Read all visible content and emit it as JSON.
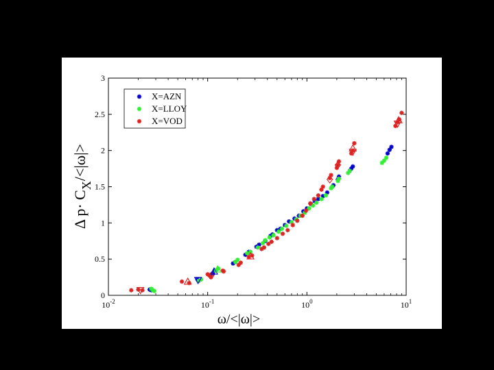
{
  "chart_data": {
    "type": "scatter",
    "x_scale": "log",
    "xlim": [
      0.01,
      10
    ],
    "ylim": [
      0,
      3
    ],
    "xlabel": "ω/<|ω|>",
    "ylabel_parts": {
      "main": "Δ p· C",
      "sub": "X",
      "tail": "/<|ω|>"
    },
    "x_ticks": [
      {
        "value": 0.01,
        "base": "10",
        "exp": "-2"
      },
      {
        "value": 0.1,
        "base": "10",
        "exp": "-1"
      },
      {
        "value": 1,
        "base": "10",
        "exp": "0"
      },
      {
        "value": 10,
        "base": "10",
        "exp": "1"
      }
    ],
    "y_ticks": [
      {
        "value": 0,
        "label": "0"
      },
      {
        "value": 0.5,
        "label": "0.5"
      },
      {
        "value": 1,
        "label": "1"
      },
      {
        "value": 1.5,
        "label": "1.5"
      },
      {
        "value": 2,
        "label": "2"
      },
      {
        "value": 2.5,
        "label": "2.5"
      },
      {
        "value": 3,
        "label": "3"
      }
    ],
    "legend_position": "top-left",
    "series": [
      {
        "name": "X=AZN",
        "color": "#0000cc",
        "points": [
          [
            0.026,
            0.08
          ],
          [
            0.027,
            0.07
          ],
          [
            0.079,
            0.22
          ],
          [
            0.081,
            0.2
          ],
          [
            0.113,
            0.3
          ],
          [
            0.118,
            0.34
          ],
          [
            0.18,
            0.44
          ],
          [
            0.19,
            0.46
          ],
          [
            0.24,
            0.56
          ],
          [
            0.26,
            0.6
          ],
          [
            0.31,
            0.67
          ],
          [
            0.33,
            0.7
          ],
          [
            0.38,
            0.75
          ],
          [
            0.43,
            0.82
          ],
          [
            0.45,
            0.84
          ],
          [
            0.5,
            0.9
          ],
          [
            0.54,
            0.92
          ],
          [
            0.6,
            0.97
          ],
          [
            0.66,
            1.02
          ],
          [
            0.75,
            1.06
          ],
          [
            0.83,
            1.1
          ],
          [
            0.92,
            1.16
          ],
          [
            1.0,
            1.2
          ],
          [
            1.1,
            1.26
          ],
          [
            1.2,
            1.3
          ],
          [
            1.3,
            1.33
          ],
          [
            1.45,
            1.37
          ],
          [
            1.6,
            1.42
          ],
          [
            1.8,
            1.5
          ],
          [
            1.85,
            1.52
          ],
          [
            2.05,
            1.6
          ],
          [
            2.1,
            1.64
          ],
          [
            2.7,
            1.72
          ],
          [
            2.8,
            1.75
          ],
          [
            2.9,
            1.78
          ],
          [
            6.5,
            1.96
          ],
          [
            6.8,
            2.01
          ],
          [
            7.1,
            2.05
          ]
        ]
      },
      {
        "name": "X=LLOY",
        "color": "#33ee33",
        "points": [
          [
            0.027,
            0.09
          ],
          [
            0.028,
            0.07
          ],
          [
            0.029,
            0.06
          ],
          [
            0.081,
            0.2
          ],
          [
            0.086,
            0.22
          ],
          [
            0.122,
            0.35
          ],
          [
            0.128,
            0.37
          ],
          [
            0.19,
            0.46
          ],
          [
            0.2,
            0.49
          ],
          [
            0.25,
            0.58
          ],
          [
            0.27,
            0.6
          ],
          [
            0.32,
            0.66
          ],
          [
            0.36,
            0.72
          ],
          [
            0.38,
            0.76
          ],
          [
            0.42,
            0.8
          ],
          [
            0.46,
            0.83
          ],
          [
            0.52,
            0.88
          ],
          [
            0.56,
            0.92
          ],
          [
            0.62,
            0.96
          ],
          [
            0.7,
            1.01
          ],
          [
            0.78,
            1.05
          ],
          [
            0.86,
            1.1
          ],
          [
            0.95,
            1.14
          ],
          [
            1.05,
            1.2
          ],
          [
            1.15,
            1.24
          ],
          [
            1.25,
            1.28
          ],
          [
            1.4,
            1.33
          ],
          [
            1.55,
            1.38
          ],
          [
            1.75,
            1.48
          ],
          [
            1.8,
            1.5
          ],
          [
            2.05,
            1.58
          ],
          [
            2.1,
            1.61
          ],
          [
            2.6,
            1.69
          ],
          [
            2.7,
            1.72
          ],
          [
            5.7,
            1.83
          ],
          [
            6.0,
            1.86
          ],
          [
            6.3,
            1.9
          ]
        ]
      },
      {
        "name": "X=VOD",
        "color": "#dd2222",
        "points": [
          [
            0.017,
            0.07
          ],
          [
            0.02,
            0.08
          ],
          [
            0.022,
            0.07
          ],
          [
            0.055,
            0.19
          ],
          [
            0.065,
            0.17
          ],
          [
            0.1,
            0.29
          ],
          [
            0.105,
            0.27
          ],
          [
            0.108,
            0.25
          ],
          [
            0.142,
            0.34
          ],
          [
            0.145,
            0.33
          ],
          [
            0.205,
            0.42
          ],
          [
            0.215,
            0.45
          ],
          [
            0.26,
            0.53
          ],
          [
            0.28,
            0.55
          ],
          [
            0.35,
            0.64
          ],
          [
            0.37,
            0.66
          ],
          [
            0.41,
            0.71
          ],
          [
            0.44,
            0.74
          ],
          [
            0.5,
            0.79
          ],
          [
            0.57,
            0.85
          ],
          [
            0.64,
            0.9
          ],
          [
            0.72,
            0.97
          ],
          [
            0.8,
            1.03
          ],
          [
            0.9,
            1.1
          ],
          [
            0.98,
            1.17
          ],
          [
            1.08,
            1.27
          ],
          [
            1.18,
            1.33
          ],
          [
            1.3,
            1.38
          ],
          [
            1.4,
            1.46
          ],
          [
            1.45,
            1.5
          ],
          [
            1.7,
            1.62
          ],
          [
            1.75,
            1.66
          ],
          [
            2.0,
            1.76
          ],
          [
            2.05,
            1.8
          ],
          [
            2.1,
            1.85
          ],
          [
            2.8,
            1.96
          ],
          [
            2.9,
            2.0
          ],
          [
            3.0,
            2.1
          ],
          [
            7.8,
            2.34
          ],
          [
            8.2,
            2.39
          ],
          [
            8.5,
            2.43
          ],
          [
            9.0,
            2.52
          ]
        ]
      }
    ],
    "marker_points": [
      {
        "series": "X=VOD",
        "shape": "triangle-down",
        "x": 0.021,
        "y": 0.07
      },
      {
        "series": "X=VOD",
        "shape": "triangle-up",
        "x": 0.063,
        "y": 0.19
      },
      {
        "series": "X=VOD",
        "shape": "diamond",
        "x": 0.108,
        "y": 0.27
      },
      {
        "series": "X=VOD",
        "shape": "triangle-up",
        "x": 0.27,
        "y": 0.54
      },
      {
        "series": "X=VOD",
        "shape": "diamond",
        "x": 1.7,
        "y": 1.6
      },
      {
        "series": "X=VOD",
        "shape": "diamond",
        "x": 2.05,
        "y": 1.8
      },
      {
        "series": "X=VOD",
        "shape": "triangle-down",
        "x": 2.9,
        "y": 1.98
      },
      {
        "series": "X=VOD",
        "shape": "triangle-up",
        "x": 2.9,
        "y": 2.03
      },
      {
        "series": "X=VOD",
        "shape": "triangle-down",
        "x": 8.2,
        "y": 2.37
      },
      {
        "series": "X=VOD",
        "shape": "triangle-up",
        "x": 8.4,
        "y": 2.42
      },
      {
        "series": "X=AZN",
        "shape": "triangle-down",
        "x": 0.08,
        "y": 0.21
      },
      {
        "series": "X=AZN",
        "shape": "triangle-up",
        "x": 0.116,
        "y": 0.33
      },
      {
        "series": "X=LLOY",
        "shape": "triangle-up",
        "x": 0.126,
        "y": 0.36
      }
    ]
  }
}
